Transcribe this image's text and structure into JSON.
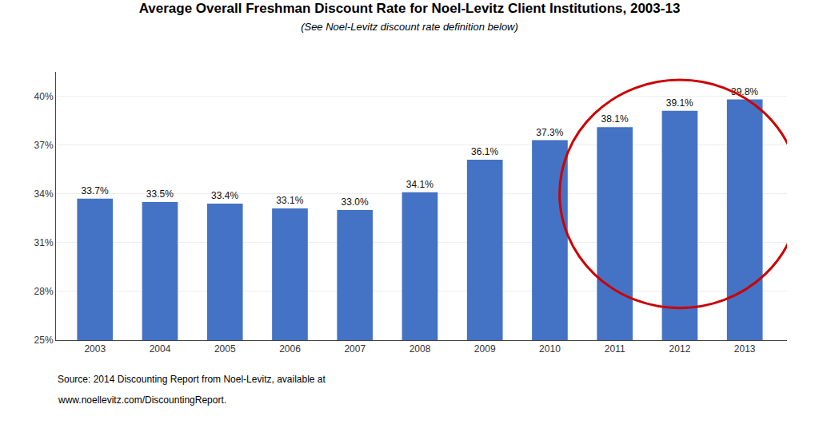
{
  "chart_data": {
    "type": "bar",
    "title": "Average Overall Freshman Discount Rate for Noel-Levitz Client Institutions, 2003-13",
    "subtitle": "(See Noel-Levitz discount rate definition below)",
    "categories": [
      "2003",
      "2004",
      "2005",
      "2006",
      "2007",
      "2008",
      "2009",
      "2010",
      "2011",
      "2012",
      "2013"
    ],
    "values": [
      33.7,
      33.5,
      33.4,
      33.1,
      33.0,
      34.1,
      36.1,
      37.3,
      38.1,
      39.1,
      39.8
    ],
    "value_labels": [
      "33.7%",
      "33.5%",
      "33.4%",
      "33.1%",
      "33.0%",
      "34.1%",
      "36.1%",
      "37.3%",
      "38.1%",
      "39.1%",
      "39.8%"
    ],
    "data_labels": true,
    "color": "#4472C4",
    "ylim": [
      25,
      41.5
    ],
    "yticks": [
      {
        "value": 25,
        "label": "25%"
      },
      {
        "value": 28,
        "label": "28%"
      },
      {
        "value": 31,
        "label": "31%"
      },
      {
        "value": 34,
        "label": "34%"
      },
      {
        "value": 37,
        "label": "37%"
      },
      {
        "value": 40,
        "label": "40%"
      }
    ],
    "grid": true,
    "annotations": [
      "Source: 2014 Discounting Report from Noel-Levitz, available at",
      "www.noellevitz.com/DiscountingReport."
    ]
  }
}
